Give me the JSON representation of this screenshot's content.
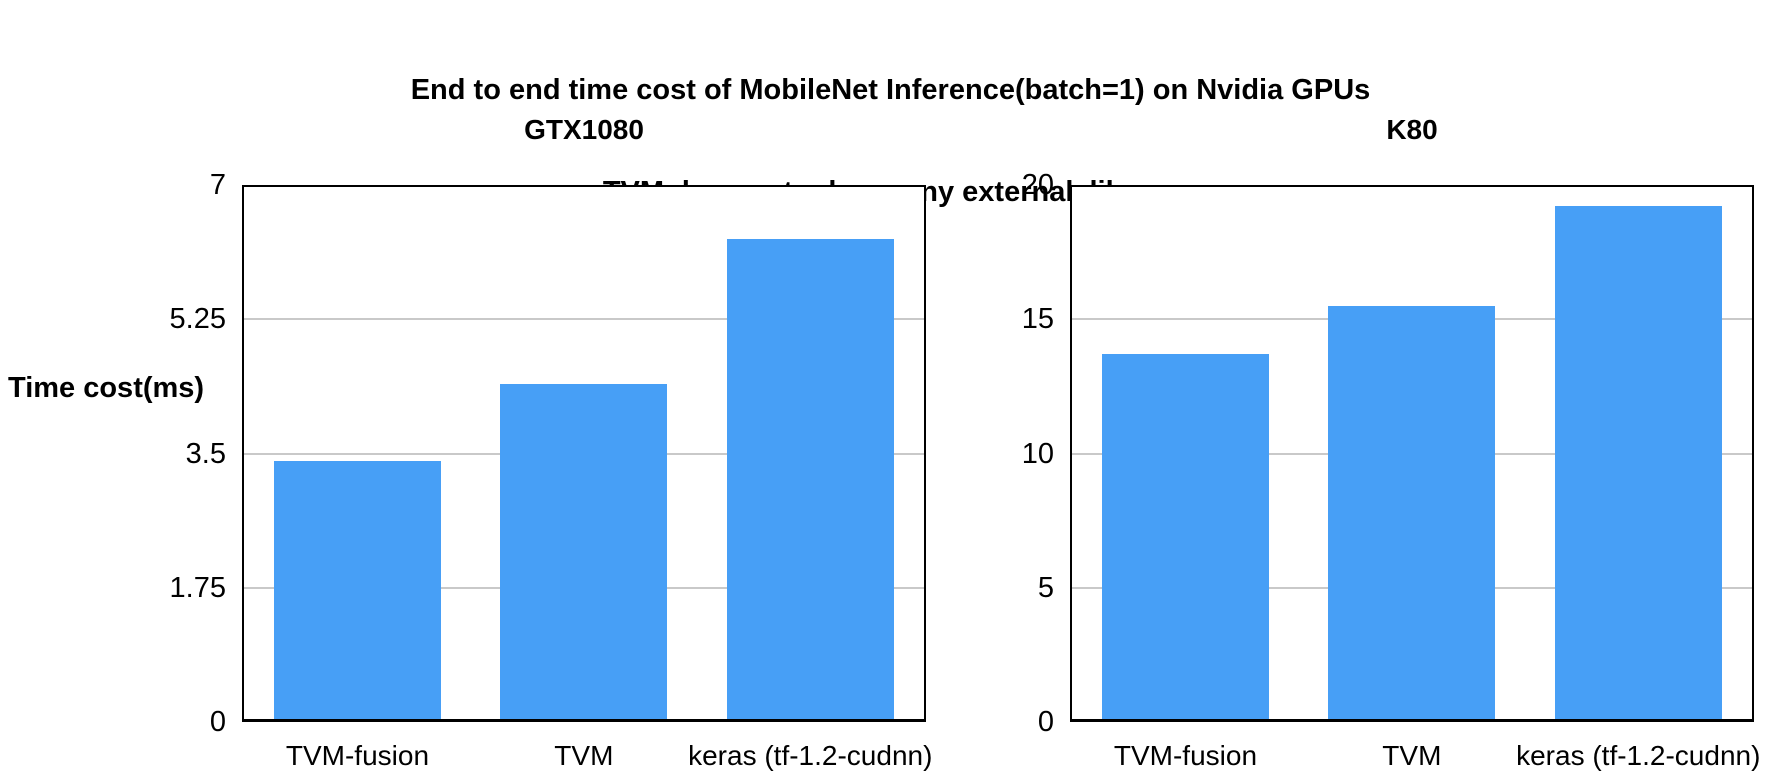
{
  "figure": {
    "title_line1": "End to end time cost of MobileNet Inference(batch=1) on Nvidia GPUs",
    "title_line2": "TVM does not rely on any external  library",
    "y_axis_label": "Time cost(ms)"
  },
  "colors": {
    "bar": "#479FF6",
    "gridline": "#C9C9C9",
    "frame": "#000000",
    "text": "#000000"
  },
  "chart_data": [
    {
      "type": "bar",
      "title": "GTX1080",
      "categories": [
        "TVM-fusion",
        "TVM",
        "keras (tf-1.2-cudnn)"
      ],
      "values": [
        3.4,
        4.4,
        6.3
      ],
      "xlabel": "",
      "ylabel": "Time cost(ms)",
      "ylim": [
        0,
        7
      ],
      "yticks": [
        "0",
        "1.75",
        "3.5",
        "5.25",
        "7"
      ],
      "ytick_values": [
        0,
        1.75,
        3.5,
        5.25,
        7
      ],
      "grid": true,
      "legend": "none"
    },
    {
      "type": "bar",
      "title": "K80",
      "categories": [
        "TVM-fusion",
        "TVM",
        "keras (tf-1.2-cudnn)"
      ],
      "values": [
        13.7,
        15.5,
        19.2
      ],
      "xlabel": "",
      "ylabel": "Time cost(ms)",
      "ylim": [
        0,
        20
      ],
      "yticks": [
        "0",
        "5",
        "10",
        "15",
        "20"
      ],
      "ytick_values": [
        0,
        5,
        10,
        15,
        20
      ],
      "grid": true,
      "legend": "none"
    }
  ]
}
